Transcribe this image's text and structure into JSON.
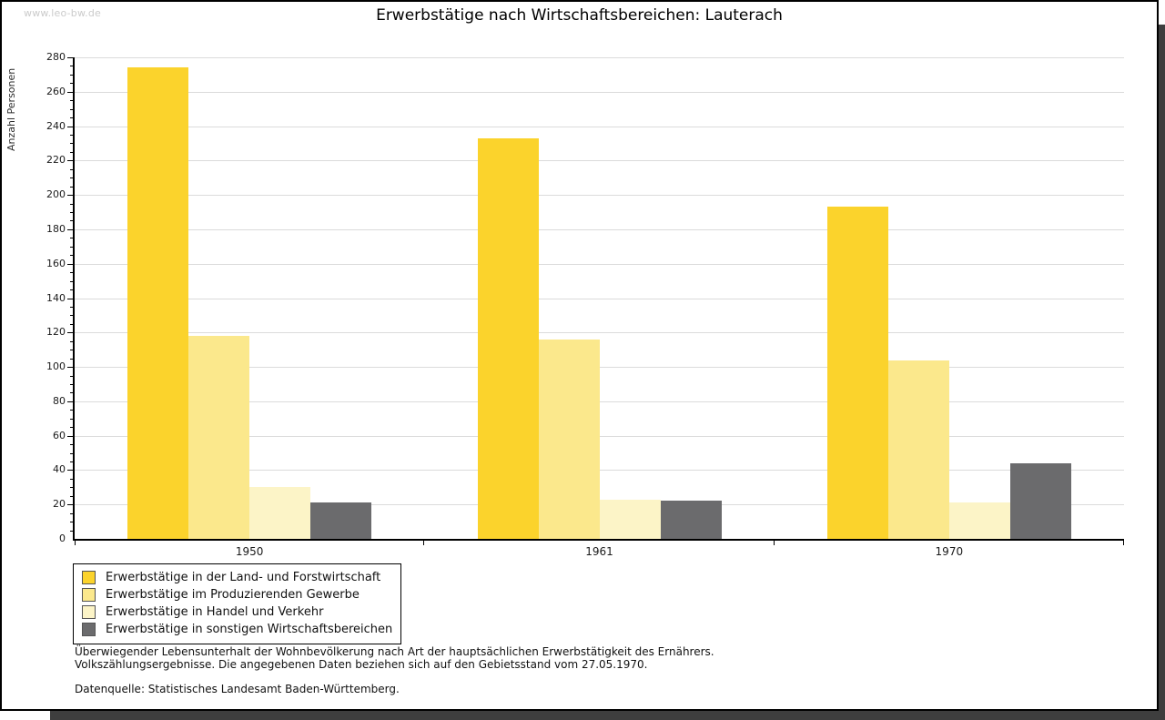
{
  "header": {
    "watermark": "www.leo-bw.de",
    "title": "Erwerbstätige nach Wirtschaftsbereichen: Lauterach"
  },
  "chart_data": {
    "type": "bar",
    "title": "Erwerbstätige nach Wirtschaftsbereichen: Lauterach",
    "xlabel": "",
    "ylabel": "Anzahl Personen",
    "categories": [
      "1950",
      "1961",
      "1970"
    ],
    "series": [
      {
        "name": "Erwerbstätige in der Land- und Forstwirtschaft",
        "color": "#FBD32C",
        "values": [
          274,
          233,
          193
        ]
      },
      {
        "name": "Erwerbstätige im Produzierenden Gewerbe",
        "color": "#FBE88C",
        "values": [
          118,
          116,
          104
        ]
      },
      {
        "name": "Erwerbstätige in Handel und Verkehr",
        "color": "#FCF4C7",
        "values": [
          30,
          23,
          21
        ]
      },
      {
        "name": "Erwerbstätige in sonstigen Wirtschaftsbereichen",
        "color": "#6B6B6D",
        "values": [
          21,
          22,
          44
        ]
      }
    ],
    "ylim": [
      0,
      280
    ],
    "ytick_step": 20,
    "ytick_minor_step": 5,
    "grid": "horizontal-major",
    "legend_position": "bottom-left"
  },
  "footer": {
    "note_line1": "Überwiegender Lebensunterhalt der Wohnbevölkerung nach Art der hauptsächlichen Erwerbstätigkeit des Ernährers.",
    "note_line2": "Volkszählungsergebnisse. Die angegebenen Daten beziehen sich auf den Gebietsstand vom 27.05.1970.",
    "source": "Datenquelle: Statistisches Landesamt Baden-Württemberg."
  },
  "colors": {
    "grid": "#DBDBDB",
    "axis": "#000000",
    "watermark": "#CBCBCB",
    "shadow": "#3E3E3E"
  }
}
